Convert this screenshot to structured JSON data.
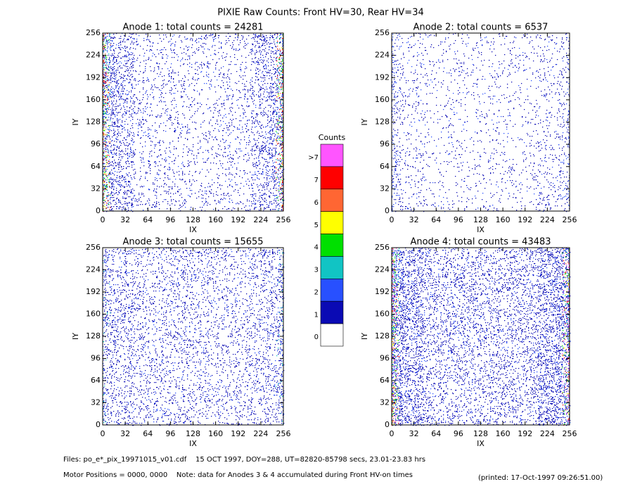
{
  "title": "PIXIE Raw Counts:  Front HV=30, Rear HV=34",
  "chart_data": [
    {
      "type": "heatmap",
      "title": "Anode 1: total counts = 24281",
      "xlabel": "IX",
      "ylabel": "IY",
      "xlim": [
        0,
        256
      ],
      "ylim": [
        0,
        256
      ],
      "xticks": [
        0,
        32,
        64,
        96,
        128,
        160,
        192,
        224,
        256
      ],
      "yticks": [
        0,
        32,
        64,
        96,
        128,
        160,
        192,
        224,
        256
      ]
    },
    {
      "type": "heatmap",
      "title": "Anode 2: total counts = 6537",
      "xlabel": "IX",
      "ylabel": "IY",
      "xlim": [
        0,
        256
      ],
      "ylim": [
        0,
        256
      ],
      "xticks": [
        0,
        32,
        64,
        96,
        128,
        160,
        192,
        224,
        256
      ],
      "yticks": [
        0,
        32,
        64,
        96,
        128,
        160,
        192,
        224,
        256
      ]
    },
    {
      "type": "heatmap",
      "title": "Anode 3: total counts = 15655",
      "xlabel": "IX",
      "ylabel": "IY",
      "xlim": [
        0,
        256
      ],
      "ylim": [
        0,
        256
      ],
      "xticks": [
        0,
        32,
        64,
        96,
        128,
        160,
        192,
        224,
        256
      ],
      "yticks": [
        0,
        32,
        64,
        96,
        128,
        160,
        192,
        224,
        256
      ]
    },
    {
      "type": "heatmap",
      "title": "Anode 4: total counts = 43483",
      "xlabel": "IX",
      "ylabel": "IY",
      "xlim": [
        0,
        256
      ],
      "ylim": [
        0,
        256
      ],
      "xticks": [
        0,
        32,
        64,
        96,
        128,
        160,
        192,
        224,
        256
      ],
      "yticks": [
        0,
        32,
        64,
        96,
        128,
        160,
        192,
        224,
        256
      ]
    }
  ],
  "colorbar": {
    "title": "Counts",
    "levels": [
      {
        "label": ">7",
        "color": "#ff55ff"
      },
      {
        "label": "7",
        "color": "#ff0000"
      },
      {
        "label": "6",
        "color": "#ff6633"
      },
      {
        "label": "5",
        "color": "#ffff00"
      },
      {
        "label": "4",
        "color": "#00e000"
      },
      {
        "label": "3",
        "color": "#11c4c4"
      },
      {
        "label": "2",
        "color": "#2850ff"
      },
      {
        "label": "1",
        "color": "#0a0ab4"
      },
      {
        "label": "0",
        "color": "#ffffff"
      }
    ]
  },
  "footer": {
    "files": "Files: po_e*_pix_19971015_v01.cdf    15 OCT 1997, DOY=288, UT=82820-85798 secs, 23.01-23.83 hrs",
    "motor": "Motor Positions = 0000, 0000    Note: data for Anodes 3 & 4 accumulated during Front HV-on times",
    "printed": "(printed: 17-Oct-1997 09:26:51.00)"
  }
}
